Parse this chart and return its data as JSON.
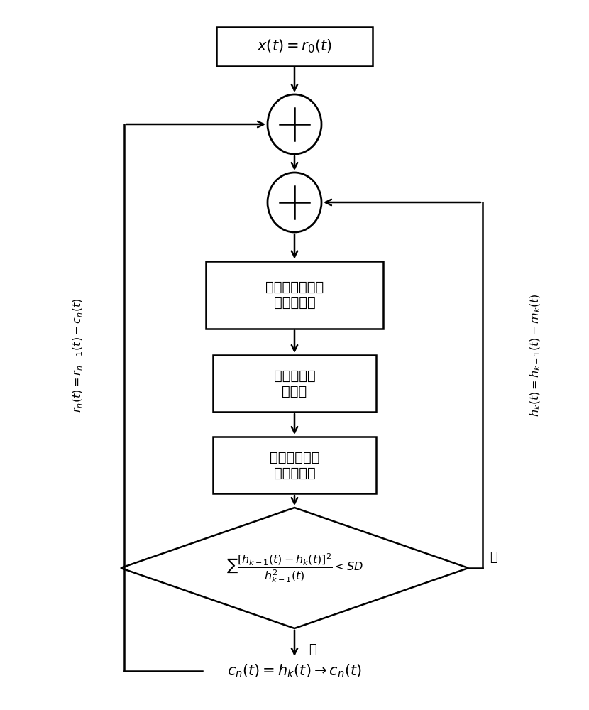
{
  "fig_width": 8.3,
  "fig_height": 10.0,
  "bg_color": "#ffffff",
  "ec": "#000000",
  "tc": "#000000",
  "lw": 1.8,
  "box1_text": "局部最小値和最\n大値的提取",
  "box2_text": "上下包络线\n的计算",
  "box3_text": "计算上下包络\n线的平均値",
  "yes_text": "是",
  "no_text": "否",
  "left_label": "$r_n(t)=r_{n-1}(t)-c_n(t)$",
  "right_label": "$h_k(t)=h_{k-1}(t)-m_k(t)$",
  "top_box_text": "$x(t)=r_0(t)$",
  "bottom_text": "$c_n(t)=h_k(t)\\rightarrow c_n(t)$",
  "diamond_formula": "$\\sum\\dfrac{\\left[h_{k-1}(t)-h_k(t)\\right]^2}{h_{k-1}^2(t)}<SD$"
}
